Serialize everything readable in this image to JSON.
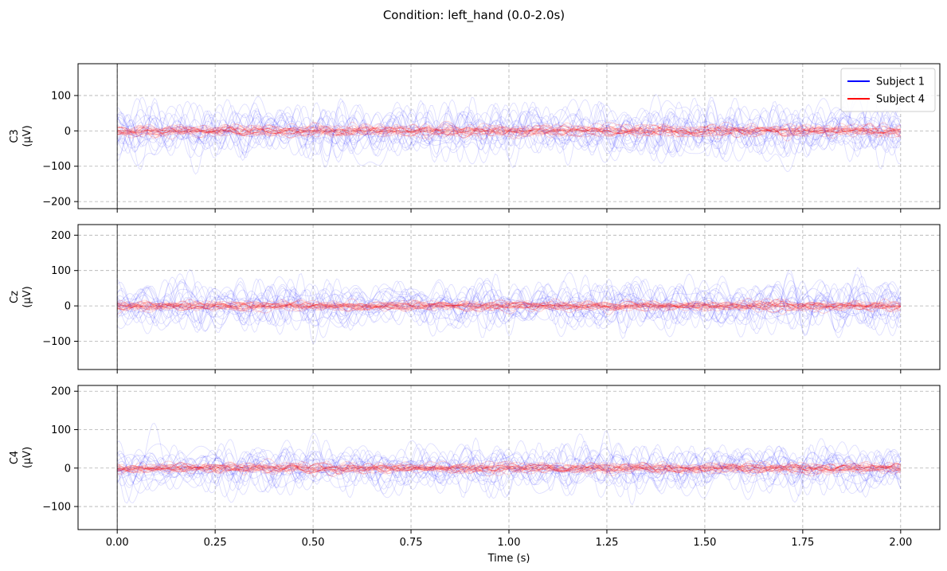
{
  "figure": {
    "title": "Condition: left_hand (0.0-2.0s)"
  },
  "chart_data": [
    {
      "type": "line",
      "channel": "C3",
      "ylabel_line1": "C3",
      "ylabel_line2": "(μV)",
      "xlabel": "",
      "xlim": [
        -0.1,
        2.1
      ],
      "ylim": [
        -220,
        190
      ],
      "xticks": [
        0.0,
        0.25,
        0.5,
        0.75,
        1.0,
        1.25,
        1.5,
        1.75,
        2.0
      ],
      "xtick_labels": [],
      "yticks": [
        -200,
        -100,
        0,
        100
      ],
      "ytick_labels": [
        "−200",
        "−100",
        "0",
        "100"
      ],
      "grid": true,
      "onset_line_x": 0.0,
      "legend": {
        "placement": "top-right",
        "entries": [
          {
            "label": "Subject 1",
            "color": "#0000ff"
          },
          {
            "label": "Subject 4",
            "color": "#ff0000"
          }
        ]
      },
      "series": [
        {
          "name": "Subject 1",
          "color": "#0000ff",
          "trials": 20,
          "amplitude_uV": 60,
          "x_range": [
            0.0,
            2.0
          ]
        },
        {
          "name": "Subject 4",
          "color": "#ff0000",
          "trials": 20,
          "amplitude_uV": 14,
          "x_range": [
            0.0,
            2.0
          ]
        }
      ]
    },
    {
      "type": "line",
      "channel": "Cz",
      "ylabel_line1": "Cz",
      "ylabel_line2": "(μV)",
      "xlabel": "",
      "xlim": [
        -0.1,
        2.1
      ],
      "ylim": [
        -180,
        230
      ],
      "xticks": [
        0.0,
        0.25,
        0.5,
        0.75,
        1.0,
        1.25,
        1.5,
        1.75,
        2.0
      ],
      "xtick_labels": [],
      "yticks": [
        -100,
        0,
        100,
        200
      ],
      "ytick_labels": [
        "−100",
        "0",
        "100",
        "200"
      ],
      "grid": true,
      "onset_line_x": 0.0,
      "series": [
        {
          "name": "Subject 1",
          "color": "#0000ff",
          "trials": 20,
          "amplitude_uV": 55,
          "x_range": [
            0.0,
            2.0
          ]
        },
        {
          "name": "Subject 4",
          "color": "#ff0000",
          "trials": 20,
          "amplitude_uV": 12,
          "x_range": [
            0.0,
            2.0
          ]
        }
      ]
    },
    {
      "type": "line",
      "channel": "C4",
      "ylabel_line1": "C4",
      "ylabel_line2": "(μV)",
      "xlabel": "Time (s)",
      "xlim": [
        -0.1,
        2.1
      ],
      "ylim": [
        -160,
        215
      ],
      "xticks": [
        0.0,
        0.25,
        0.5,
        0.75,
        1.0,
        1.25,
        1.5,
        1.75,
        2.0
      ],
      "xtick_labels": [
        "0.00",
        "0.25",
        "0.50",
        "0.75",
        "1.00",
        "1.25",
        "1.50",
        "1.75",
        "2.00"
      ],
      "yticks": [
        -100,
        0,
        100,
        200
      ],
      "ytick_labels": [
        "−100",
        "0",
        "100",
        "200"
      ],
      "grid": true,
      "onset_line_x": 0.0,
      "series": [
        {
          "name": "Subject 1",
          "color": "#0000ff",
          "trials": 20,
          "amplitude_uV": 50,
          "x_range": [
            0.0,
            2.0
          ]
        },
        {
          "name": "Subject 4",
          "color": "#ff0000",
          "trials": 20,
          "amplitude_uV": 12,
          "x_range": [
            0.0,
            2.0
          ]
        }
      ]
    }
  ]
}
